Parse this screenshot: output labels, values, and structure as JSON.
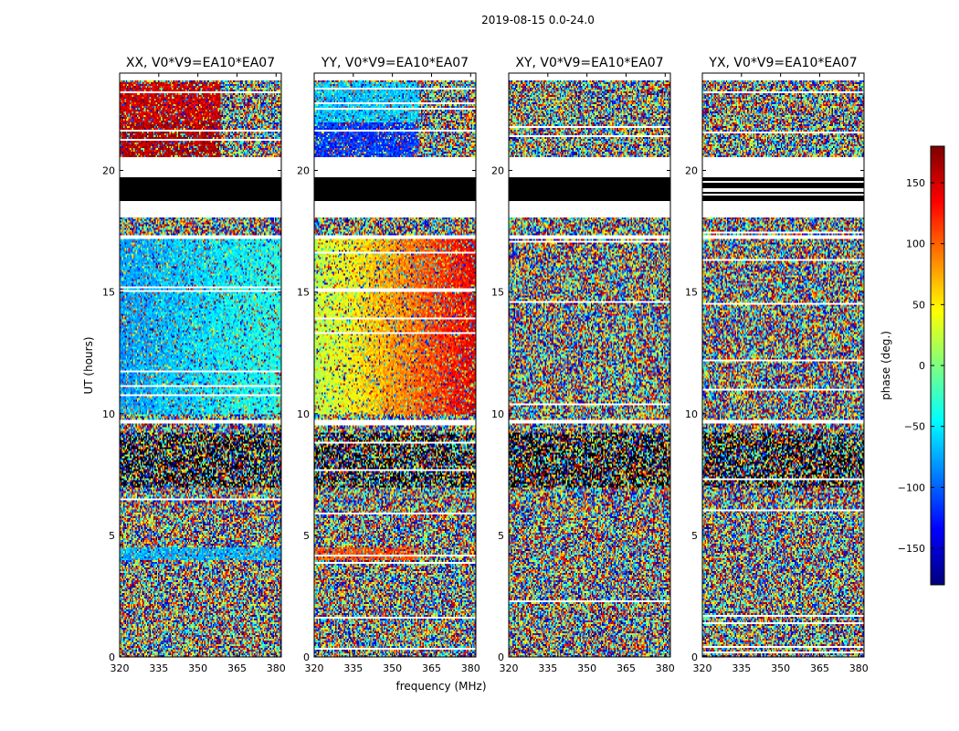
{
  "figure": {
    "suptitle": "2019-08-15 0.0-24.0"
  },
  "chart_data": {
    "type": "heatmap",
    "xlabel": "frequency (MHz)",
    "ylabel": "UT (hours)",
    "xlim": [
      320,
      382
    ],
    "ylim": [
      0,
      24
    ],
    "xticks": [
      320,
      335,
      350,
      365,
      380
    ],
    "yticks": [
      0,
      5,
      10,
      15,
      20
    ],
    "panels": [
      {
        "title": "XX, V0*V9=EA10*EA07",
        "pol": "XX"
      },
      {
        "title": "YY, V0*V9=EA10*EA07",
        "pol": "YY"
      },
      {
        "title": "XY, V0*V9=EA10*EA07",
        "pol": "XY"
      },
      {
        "title": "YX, V0*V9=EA10*EA07",
        "pol": "YX"
      }
    ],
    "blank_intervals_hours": [
      [
        18.05,
        18.75
      ],
      [
        19.7,
        20.55
      ],
      [
        17.2,
        17.3
      ],
      [
        9.6,
        9.75
      ]
    ],
    "colorbar": {
      "label": "phase (deg.)",
      "range": [
        -180,
        180
      ],
      "ticks": [
        150,
        100,
        50,
        0,
        -50,
        -100,
        -150
      ],
      "tick_labels": [
        "150",
        "100",
        "50",
        "0",
        "−50",
        "−100",
        "−150"
      ],
      "colormap": "jet"
    }
  }
}
